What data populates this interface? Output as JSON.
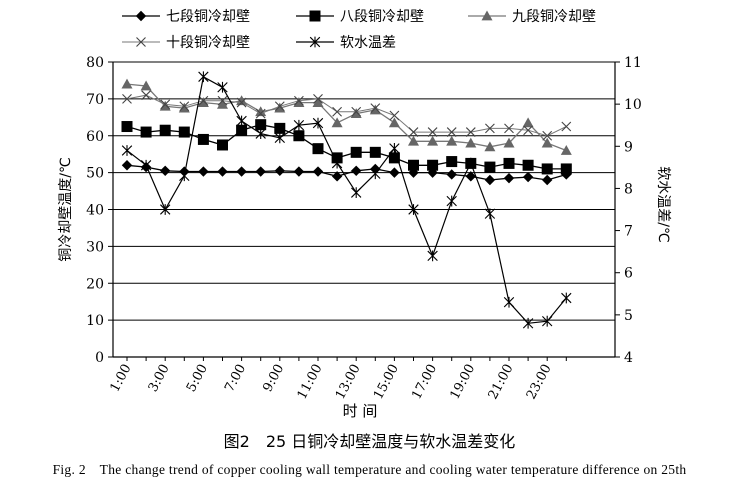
{
  "chart_data": {
    "type": "line",
    "legend_placement": "top",
    "x": [
      "1:00",
      "2:00",
      "3:00",
      "4:00",
      "5:00",
      "6:00",
      "7:00",
      "8:00",
      "9:00",
      "10:00",
      "11:00",
      "12:00",
      "13:00",
      "14:00",
      "15:00",
      "16:00",
      "17:00",
      "18:00",
      "19:00",
      "20:00",
      "21:00",
      "22:00",
      "23:00",
      "24:00"
    ],
    "xtick_labels": [
      "1:00",
      "3:00",
      "5:00",
      "7:00",
      "9:00",
      "11:00",
      "13:00",
      "15:00",
      "17:00",
      "19:00",
      "21:00",
      "23:00"
    ],
    "xlabel": "时 间",
    "ylabel": "铜冷却壁温度/℃",
    "ylabel_right": "软水温差/℃",
    "ylim": [
      0,
      80
    ],
    "yticks": [
      0,
      10,
      20,
      30,
      40,
      50,
      60,
      70,
      80
    ],
    "ylim_right": [
      4,
      11
    ],
    "yticks_right": [
      4,
      5,
      6,
      7,
      8,
      9,
      10,
      11
    ],
    "grid": "horizontal",
    "series": [
      {
        "name": "七段铜冷却壁",
        "axis": "left",
        "marker": "diamond",
        "values": [
          52.0,
          51.5,
          50.5,
          50.3,
          50.3,
          50.3,
          50.3,
          50.3,
          50.5,
          50.3,
          50.3,
          49.0,
          50.5,
          51.0,
          50.0,
          50.0,
          50.0,
          49.5,
          49.0,
          48.0,
          48.5,
          48.8,
          48.0,
          49.5
        ]
      },
      {
        "name": "八段铜冷却壁",
        "axis": "left",
        "marker": "square",
        "values": [
          62.5,
          61.0,
          61.5,
          61.0,
          59.0,
          57.5,
          61.5,
          63.0,
          62.0,
          60.0,
          56.5,
          54.0,
          55.5,
          55.5,
          54.0,
          52.0,
          52.0,
          53.0,
          52.5,
          51.5,
          52.5,
          52.0,
          51.0,
          51.0
        ]
      },
      {
        "name": "九段铜冷却壁",
        "axis": "left",
        "marker": "triangle",
        "values": [
          74.0,
          73.5,
          68.0,
          67.5,
          69.0,
          68.5,
          69.5,
          66.5,
          67.5,
          69.0,
          69.0,
          63.5,
          66.0,
          67.0,
          63.5,
          58.5,
          58.5,
          58.5,
          58.0,
          57.0,
          58.0,
          63.5,
          58.0,
          56.0
        ]
      },
      {
        "name": "十段铜冷却壁",
        "axis": "left",
        "marker": "x",
        "values": [
          70.0,
          71.0,
          68.5,
          68.0,
          69.5,
          69.5,
          69.0,
          66.0,
          68.0,
          69.5,
          70.0,
          66.5,
          66.5,
          67.5,
          65.5,
          61.0,
          61.0,
          61.0,
          61.0,
          62.0,
          62.0,
          61.5,
          60.0,
          62.5
        ]
      },
      {
        "name": "软水温差",
        "axis": "right",
        "marker": "star",
        "values": [
          8.9,
          8.55,
          7.5,
          8.3,
          10.65,
          10.4,
          9.6,
          9.3,
          9.2,
          9.5,
          9.55,
          8.6,
          7.9,
          8.35,
          8.95,
          7.5,
          6.4,
          7.7,
          8.6,
          7.4,
          5.3,
          4.8,
          4.85,
          5.4
        ]
      }
    ]
  },
  "caption": {
    "cn": "图2　25 日铜冷却壁温度与软水温差变化",
    "en": "Fig. 2　The change trend of copper cooling wall temperature and cooling water temperature difference on 25th"
  }
}
